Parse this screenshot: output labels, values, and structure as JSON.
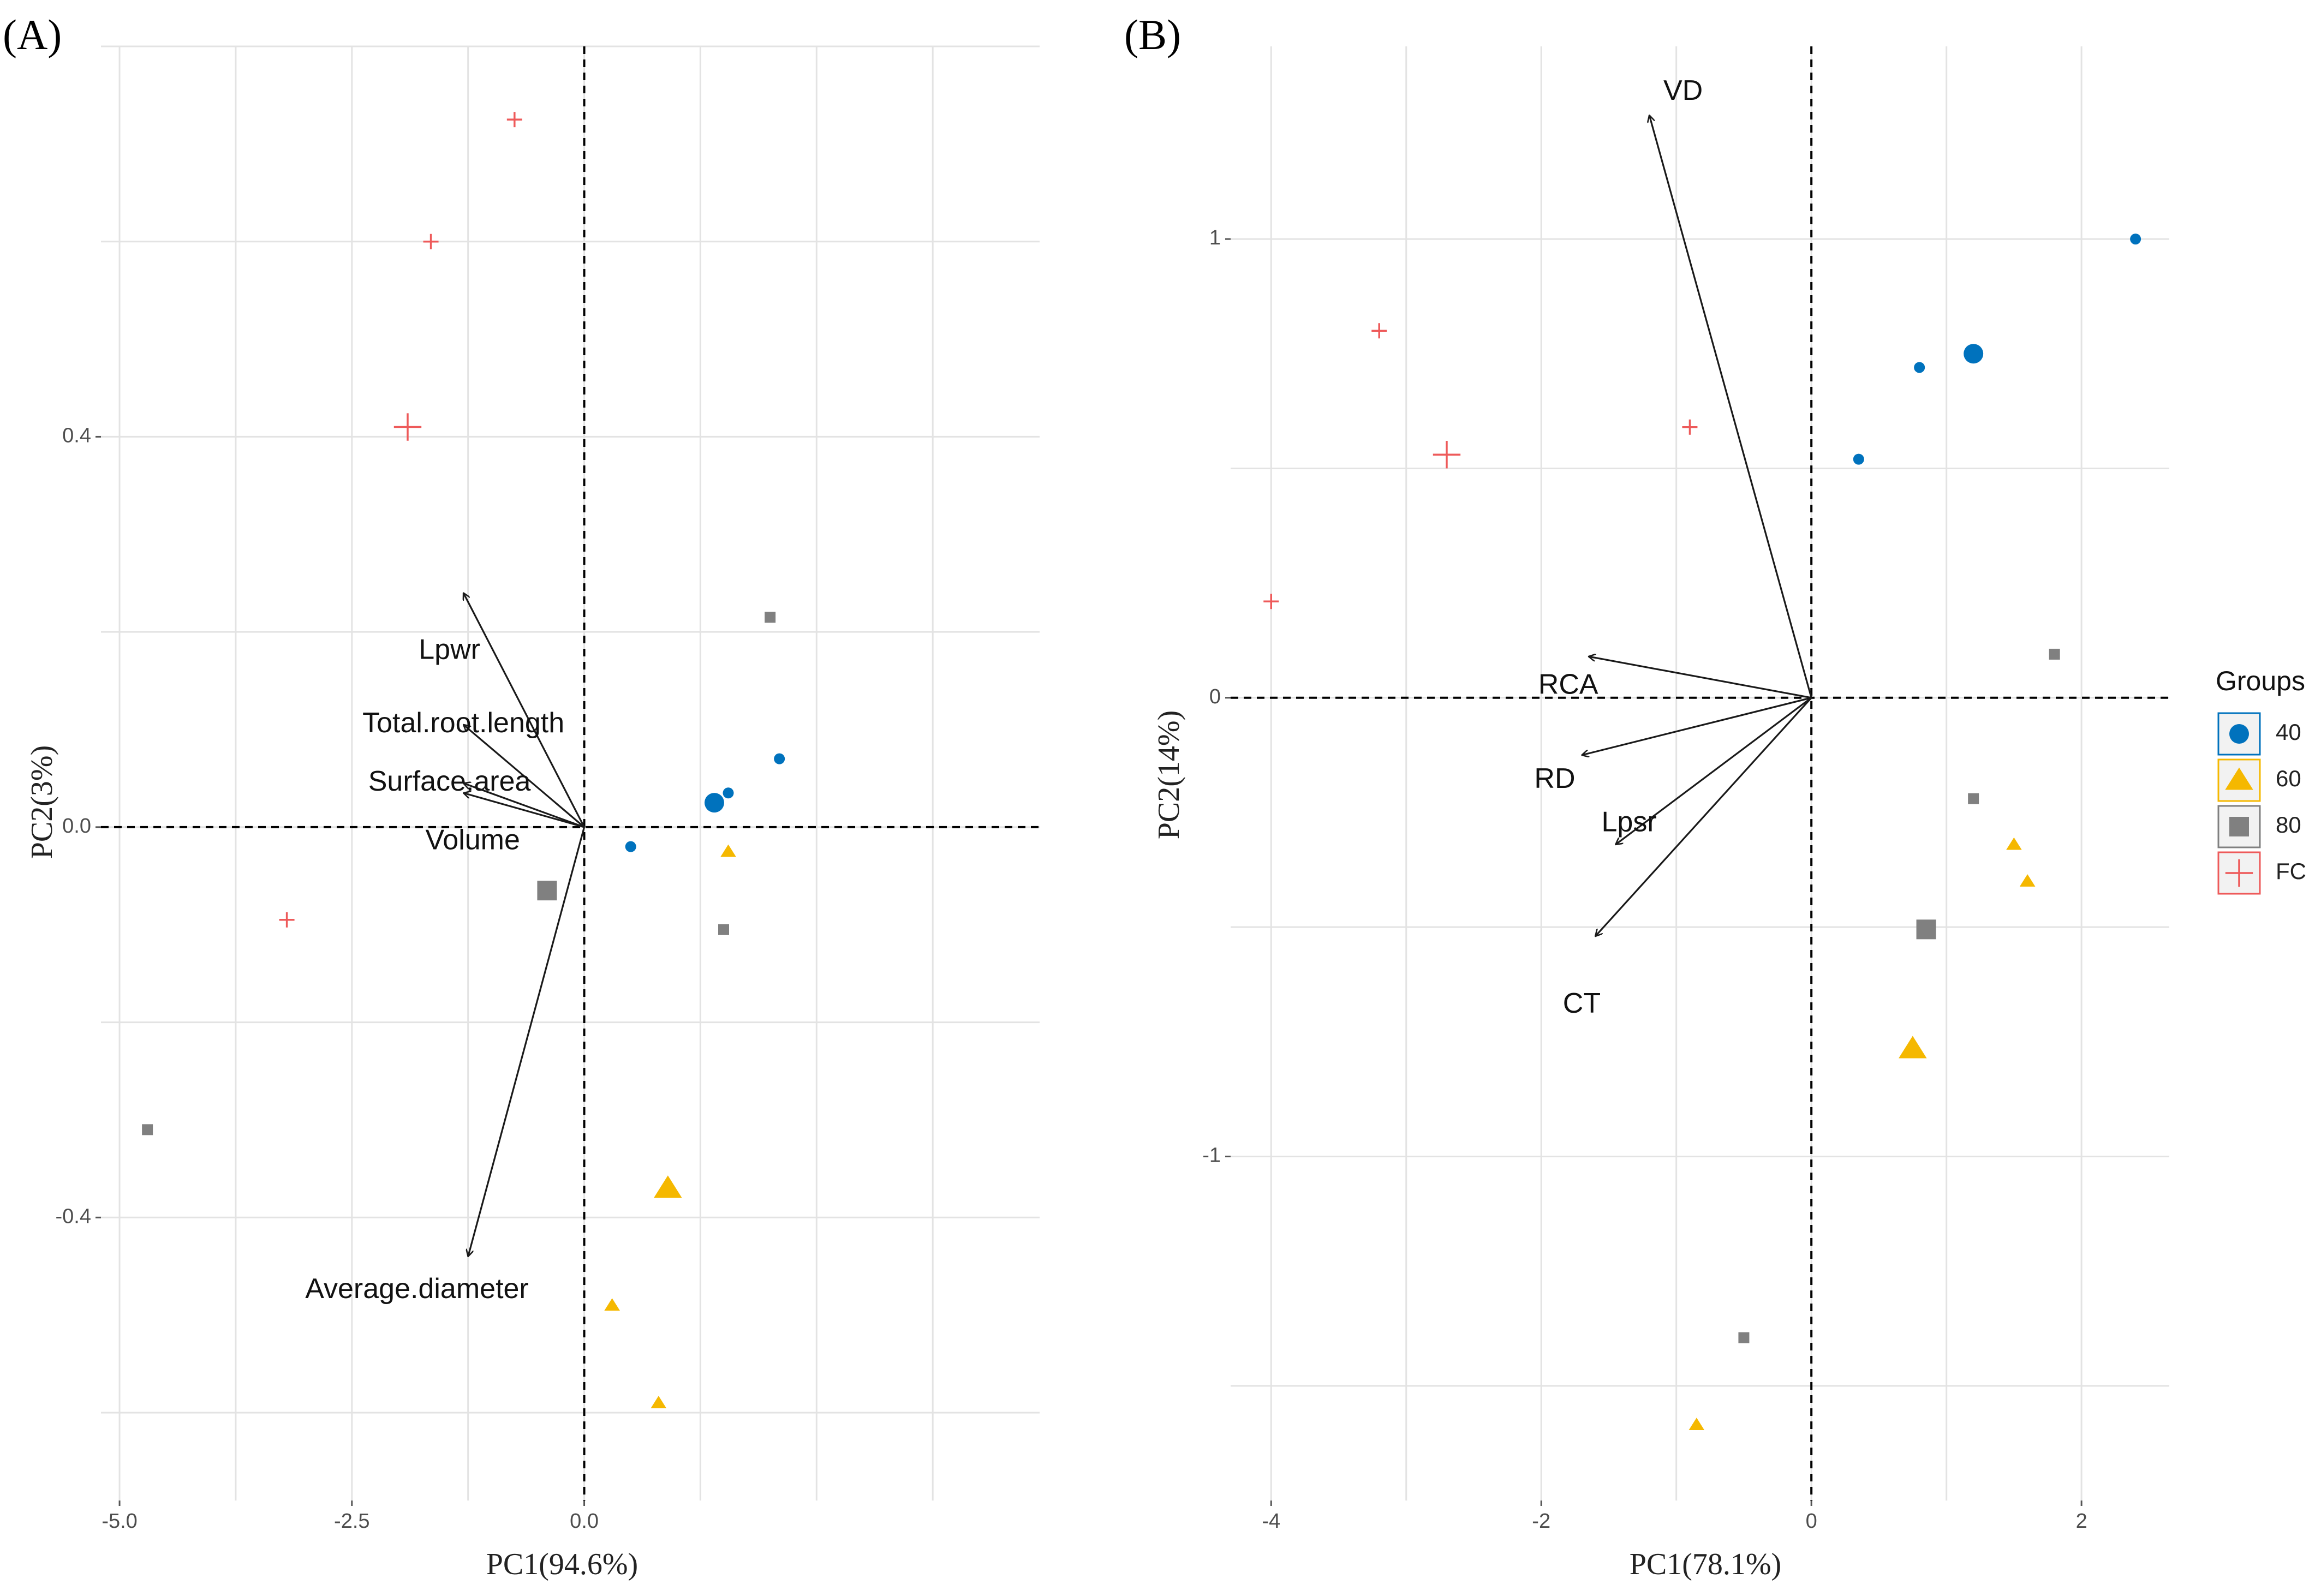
{
  "chart_data": [
    {
      "type": "scatter",
      "panel_label": "(A)",
      "xlabel": "PC1(94.6%)",
      "ylabel": "PC2(3%)",
      "xlim": [
        -5.2,
        4.9
      ],
      "ylim": [
        -0.69,
        0.8
      ],
      "xticks": [
        -5.0,
        -2.5,
        0.0
      ],
      "xtick_labels": [
        "-5.0",
        "-2.5",
        "0.0"
      ],
      "yticks": [
        -0.4,
        0.0,
        0.4
      ],
      "ytick_labels": [
        "-0.4",
        "0.0",
        "0.4"
      ],
      "grid": true,
      "points": [
        {
          "group": "FC",
          "x": -0.75,
          "y": 0.725
        },
        {
          "group": "FC",
          "x": -1.65,
          "y": 0.6
        },
        {
          "group": "FC",
          "x": -1.9,
          "y": 0.41,
          "centroid": true
        },
        {
          "group": "FC",
          "x": -3.2,
          "y": -0.095
        },
        {
          "group": "40",
          "x": 1.4,
          "y": 0.025,
          "centroid": true
        },
        {
          "group": "40",
          "x": 1.55,
          "y": 0.035
        },
        {
          "group": "40",
          "x": 2.1,
          "y": 0.07
        },
        {
          "group": "40",
          "x": 0.5,
          "y": -0.02
        },
        {
          "group": "80",
          "x": 2.0,
          "y": 0.215
        },
        {
          "group": "80",
          "x": -0.4,
          "y": -0.065,
          "centroid": true
        },
        {
          "group": "80",
          "x": 1.5,
          "y": -0.105
        },
        {
          "group": "80",
          "x": -4.7,
          "y": -0.31
        },
        {
          "group": "60",
          "x": 1.55,
          "y": -0.025
        },
        {
          "group": "60",
          "x": 0.9,
          "y": -0.37,
          "centroid": true
        },
        {
          "group": "60",
          "x": 0.3,
          "y": -0.49
        },
        {
          "group": "60",
          "x": 0.8,
          "y": -0.59
        }
      ],
      "loadings": [
        {
          "name": "Lpwr",
          "x": -1.3,
          "y": 0.24
        },
        {
          "name": "Total.root.length",
          "x": -1.3,
          "y": 0.105
        },
        {
          "name": "Surface.area",
          "x": -1.3,
          "y": 0.045
        },
        {
          "name": "Volume",
          "x": -1.3,
          "y": 0.035
        },
        {
          "name": "Average.diameter",
          "x": -1.25,
          "y": -0.44
        }
      ],
      "loading_labels": [
        {
          "name": "Lpwr",
          "x": -1.45,
          "y": 0.18
        },
        {
          "name": "Total.root.length",
          "x": -1.3,
          "y": 0.105
        },
        {
          "name": "Surface.area",
          "x": -1.45,
          "y": 0.045
        },
        {
          "name": "Volume",
          "x": -1.2,
          "y": -0.015
        },
        {
          "name": "Average.diameter",
          "x": -1.8,
          "y": -0.475
        }
      ]
    },
    {
      "type": "scatter",
      "panel_label": "(B)",
      "xlabel": "PC1(78.1%)",
      "ylabel": "PC2(14%)",
      "xlim": [
        -4.3,
        2.65
      ],
      "ylim": [
        -1.75,
        1.42
      ],
      "xticks": [
        -4,
        -2,
        0,
        2
      ],
      "xtick_labels": [
        "-4",
        "-2",
        "0",
        "2"
      ],
      "yticks": [
        -1,
        0,
        1
      ],
      "ytick_labels": [
        "-1",
        "0",
        "1"
      ],
      "grid": true,
      "points": [
        {
          "group": "40",
          "x": 2.4,
          "y": 1.0
        },
        {
          "group": "40",
          "x": 1.2,
          "y": 0.75,
          "centroid": true
        },
        {
          "group": "40",
          "x": 0.8,
          "y": 0.72
        },
        {
          "group": "40",
          "x": 0.35,
          "y": 0.52
        },
        {
          "group": "FC",
          "x": -3.2,
          "y": 0.8
        },
        {
          "group": "FC",
          "x": -2.7,
          "y": 0.53,
          "centroid": true
        },
        {
          "group": "FC",
          "x": -0.9,
          "y": 0.59
        },
        {
          "group": "FC",
          "x": -4.0,
          "y": 0.21
        },
        {
          "group": "80",
          "x": 1.8,
          "y": 0.095
        },
        {
          "group": "80",
          "x": 1.2,
          "y": -0.22
        },
        {
          "group": "80",
          "x": 0.85,
          "y": -0.505,
          "centroid": true
        },
        {
          "group": "80",
          "x": -0.5,
          "y": -1.395
        },
        {
          "group": "60",
          "x": 1.5,
          "y": -0.32
        },
        {
          "group": "60",
          "x": 1.6,
          "y": -0.4
        },
        {
          "group": "60",
          "x": 0.75,
          "y": -0.765,
          "centroid": true
        },
        {
          "group": "60",
          "x": -0.85,
          "y": -1.585
        }
      ],
      "loadings": [
        {
          "name": "VD",
          "x": -1.2,
          "y": 1.27
        },
        {
          "name": "RCA",
          "x": -1.65,
          "y": 0.09
        },
        {
          "name": "RD",
          "x": -1.7,
          "y": -0.125
        },
        {
          "name": "Lpsr",
          "x": -1.45,
          "y": -0.32
        },
        {
          "name": "CT",
          "x": -1.6,
          "y": -0.52
        }
      ],
      "loading_labels": [
        {
          "name": "VD",
          "x": -0.95,
          "y": 1.32
        },
        {
          "name": "RCA",
          "x": -1.8,
          "y": 0.025
        },
        {
          "name": "RD",
          "x": -1.9,
          "y": -0.18
        },
        {
          "name": "Lpsr",
          "x": -1.35,
          "y": -0.275
        },
        {
          "name": "CT",
          "x": -1.7,
          "y": -0.67
        }
      ]
    }
  ],
  "legend": {
    "title": "Groups",
    "position": "right",
    "entries": [
      {
        "label": "40",
        "shape": "circle",
        "color": "#0072BD"
      },
      {
        "label": "60",
        "shape": "triangle",
        "color": "#F5B800"
      },
      {
        "label": "80",
        "shape": "square",
        "color": "#808080"
      },
      {
        "label": "FC",
        "shape": "cross",
        "color": "#EE5A5A"
      }
    ]
  },
  "colors": {
    "40": "#0072BD",
    "60": "#F5B800",
    "80": "#808080",
    "FC": "#EE5A5A",
    "grid": "#E3E3E3",
    "arrow": "#1a1a1a"
  }
}
